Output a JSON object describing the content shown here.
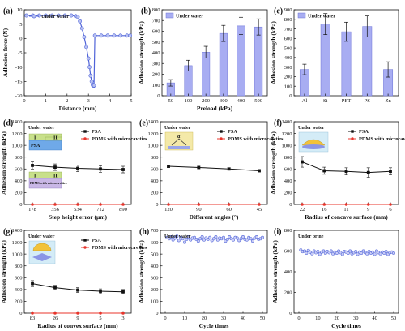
{
  "colors": {
    "blue": "#4f63d8",
    "bar": "#a8adf2",
    "black": "#111111",
    "red": "#e8342b"
  },
  "chart_data": [
    {
      "panel": "(a)",
      "type": "line",
      "xlabel": "Distance (mm)",
      "ylabel": "Adhesion force (N)",
      "xlim": [
        0,
        5
      ],
      "ylim": [
        -20,
        10
      ],
      "xticks": [
        "0",
        "1",
        "2",
        "3",
        "4",
        "5"
      ],
      "yticks": [
        "-20",
        "-15",
        "-10",
        "-5",
        "0",
        "5",
        "10"
      ],
      "legend": [
        "Under water"
      ],
      "legend_position": "top-left",
      "series": [
        {
          "name": "Under water",
          "x": [
            0.1,
            0.4,
            0.7,
            1.0,
            1.3,
            1.6,
            1.9,
            2.2,
            2.4,
            2.5,
            2.6,
            2.7,
            2.8,
            2.9,
            3.0,
            3.05,
            3.1,
            3.15,
            3.2,
            3.22,
            3.24,
            3.26,
            3.3,
            3.6,
            3.9,
            4.2,
            4.5,
            4.8,
            4.95
          ],
          "y": [
            8,
            8,
            8,
            8,
            8,
            8,
            8,
            8,
            7.8,
            7.5,
            6,
            3.5,
            0.5,
            -3,
            -7,
            -10,
            -13,
            -15,
            -16.2,
            -16.5,
            -16.6,
            -16.4,
            1,
            1,
            1,
            1,
            1,
            1,
            1
          ]
        }
      ]
    },
    {
      "panel": "(b)",
      "type": "bar",
      "xlabel": "Preload (kPa)",
      "ylabel": "Adhesion strength (kPa)",
      "ylim": [
        0,
        800
      ],
      "yticks": [
        "0",
        "100",
        "200",
        "300",
        "400",
        "500",
        "600",
        "700",
        "800"
      ],
      "legend": [
        "Under water"
      ],
      "legend_position": "top-left",
      "categories": [
        "50",
        "100",
        "200",
        "300",
        "400",
        "500"
      ],
      "values": [
        120,
        280,
        405,
        580,
        650,
        640
      ],
      "errors": [
        30,
        50,
        55,
        75,
        80,
        75
      ]
    },
    {
      "panel": "(c)",
      "type": "bar",
      "xlabel": "",
      "ylabel": "Adhesion strength (kPa)",
      "ylim": [
        0,
        900
      ],
      "yticks": [
        "0",
        "100",
        "200",
        "300",
        "400",
        "500",
        "600",
        "700",
        "800",
        "900"
      ],
      "legend": [
        "Under water"
      ],
      "legend_position": "top-left",
      "categories": [
        "Al",
        "Si",
        "PET",
        "PS",
        "Zn"
      ],
      "values": [
        275,
        750,
        670,
        725,
        275
      ],
      "errors": [
        55,
        110,
        100,
        110,
        80
      ]
    },
    {
      "panel": "(d)",
      "type": "line",
      "xlabel": "Step height error (μm)",
      "ylabel": "Adhesion strength (kPa)",
      "ylim": [
        0,
        1400
      ],
      "yticks": [
        "0",
        "200",
        "400",
        "600",
        "800",
        "1000",
        "1200",
        "1400"
      ],
      "categories": [
        "178",
        "356",
        "534",
        "712",
        "890"
      ],
      "annotation": "Under water",
      "inset_labels": [
        "I",
        "II",
        "PSA",
        "I",
        "II",
        "PDMS with microcavities"
      ],
      "legend": [
        "PSA",
        "PDMS with microcavities"
      ],
      "legend_position": "top-right",
      "series": [
        {
          "name": "PSA",
          "values": [
            660,
            630,
            610,
            600,
            590
          ],
          "errors": [
            60,
            55,
            55,
            55,
            55
          ]
        },
        {
          "name": "PDMS with microcavities",
          "values": [
            0,
            0,
            0,
            0,
            0
          ]
        }
      ]
    },
    {
      "panel": "(e)",
      "type": "line",
      "xlabel": "Different angles (°)",
      "ylabel": "",
      "ylim": [
        0,
        1400
      ],
      "yticks": [
        "0",
        "200",
        "400",
        "600",
        "800",
        "1000",
        "1200",
        "1400"
      ],
      "categories": [
        "120",
        "90",
        "60",
        "45"
      ],
      "annotation": "Under water",
      "inset_labels": [
        "α"
      ],
      "legend": [
        "PSA",
        "PDMS with microcavities"
      ],
      "legend_position": "top-right",
      "series": [
        {
          "name": "PSA",
          "values": [
            645,
            625,
            600,
            570
          ],
          "errors": [
            20,
            20,
            20,
            20
          ]
        },
        {
          "name": "PDMS with microcavities",
          "values": [
            0,
            0,
            0,
            0
          ]
        }
      ]
    },
    {
      "panel": "(f)",
      "type": "line",
      "xlabel": "Radius of concave surface (mm)",
      "ylabel": "Adhesion strength (kPa)",
      "ylim": [
        0,
        1400
      ],
      "yticks": [
        "0",
        "200",
        "400",
        "600",
        "800",
        "1000",
        "1200",
        "1400"
      ],
      "categories": [
        "22",
        "16",
        "11",
        "9",
        "6"
      ],
      "annotation": "Under water",
      "legend": [
        "PSA",
        "PDMS with microcavities"
      ],
      "legend_position": "top-right",
      "series": [
        {
          "name": "PSA",
          "values": [
            720,
            570,
            560,
            540,
            560
          ],
          "errors": [
            90,
            60,
            60,
            80,
            60
          ]
        },
        {
          "name": "PDMS with microcavities",
          "values": [
            0,
            0,
            0,
            0,
            0
          ]
        }
      ]
    },
    {
      "panel": "(g)",
      "type": "line",
      "xlabel": "Radius of convex surface (mm)",
      "ylabel": "Adhesion strength (kPa)",
      "ylim": [
        0,
        1400
      ],
      "yticks": [
        "0",
        "200",
        "400",
        "600",
        "800",
        "1000",
        "1200",
        "1400"
      ],
      "categories": [
        "83",
        "26",
        "9",
        "5",
        "3"
      ],
      "annotation": "Under water",
      "legend": [
        "PSA",
        "PDMS with microcavities"
      ],
      "legend_position": "top-right",
      "series": [
        {
          "name": "PSA",
          "values": [
            500,
            430,
            390,
            370,
            360
          ],
          "errors": [
            50,
            40,
            40,
            40,
            40
          ]
        },
        {
          "name": "PDMS with microcavities",
          "values": [
            0,
            0,
            0,
            0,
            0
          ]
        }
      ]
    },
    {
      "panel": "(h)",
      "type": "scatter",
      "xlabel": "Cycle times",
      "ylabel": "Adhesion strength (kPa)",
      "xlim": [
        0,
        50
      ],
      "ylim": [
        0,
        700
      ],
      "xticks": [
        "0",
        "10",
        "20",
        "30",
        "40",
        "50"
      ],
      "yticks": [
        "0",
        "100",
        "200",
        "300",
        "400",
        "500",
        "600",
        "700"
      ],
      "annotation": "Under water",
      "series": [
        {
          "name": "",
          "x": [
            1,
            2,
            3,
            4,
            5,
            6,
            7,
            8,
            9,
            10,
            11,
            12,
            13,
            14,
            15,
            16,
            17,
            18,
            19,
            20,
            21,
            22,
            23,
            24,
            25,
            26,
            27,
            28,
            29,
            30,
            31,
            32,
            33,
            34,
            35,
            36,
            37,
            38,
            39,
            40,
            41,
            42,
            43,
            44,
            45,
            46,
            47,
            48,
            49,
            50
          ],
          "y": [
            640,
            630,
            645,
            620,
            635,
            650,
            615,
            640,
            630,
            600,
            625,
            645,
            620,
            635,
            640,
            625,
            610,
            630,
            645,
            620,
            635,
            625,
            640,
            615,
            630,
            645,
            620,
            635,
            630,
            640,
            610,
            625,
            645,
            630,
            620,
            640,
            635,
            615,
            630,
            645,
            625,
            620,
            640,
            630,
            610,
            635,
            645,
            625,
            630,
            640
          ]
        }
      ]
    },
    {
      "panel": "(i)",
      "type": "scatter",
      "xlabel": "Cycle times",
      "ylabel": "Adhesion strength (kPa)",
      "xlim": [
        0,
        50
      ],
      "ylim": [
        0,
        800
      ],
      "xticks": [
        "0",
        "10",
        "20",
        "30",
        "40",
        "50"
      ],
      "yticks": [
        "0",
        "200",
        "400",
        "600",
        "800"
      ],
      "annotation": "Under brine",
      "series": [
        {
          "name": "",
          "x": [
            1,
            2,
            3,
            4,
            5,
            6,
            7,
            8,
            9,
            10,
            11,
            12,
            13,
            14,
            15,
            16,
            17,
            18,
            19,
            20,
            21,
            22,
            23,
            24,
            25,
            26,
            27,
            28,
            29,
            30,
            31,
            32,
            33,
            34,
            35,
            36,
            37,
            38,
            39,
            40,
            41,
            42,
            43,
            44,
            45,
            46,
            47,
            48,
            49,
            50
          ],
          "y": [
            610,
            595,
            600,
            580,
            605,
            590,
            575,
            600,
            585,
            595,
            570,
            590,
            600,
            580,
            595,
            585,
            600,
            575,
            590,
            580,
            600,
            585,
            570,
            595,
            590,
            580,
            600,
            575,
            585,
            595,
            570,
            590,
            580,
            600,
            585,
            575,
            595,
            580,
            590,
            570,
            600,
            585,
            575,
            590,
            580,
            595,
            570,
            585,
            590,
            580
          ]
        }
      ]
    }
  ]
}
